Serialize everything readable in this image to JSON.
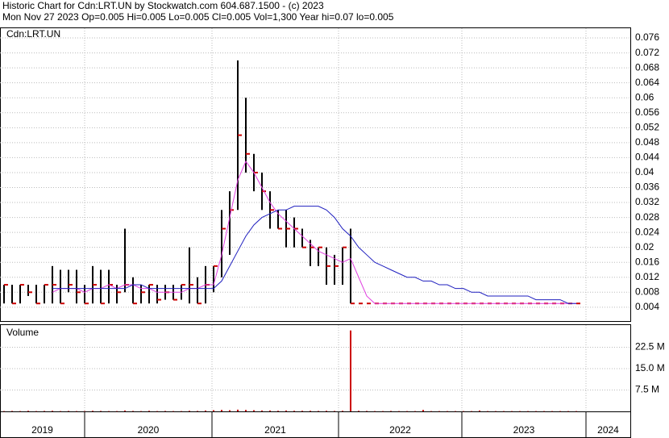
{
  "header": {
    "title": "Historic Chart for Cdn:LRT.UN by Stockwatch.com 604.687.1500 - (c) 2023",
    "quote": "Mon Nov 27 2023  Op=0.005  Hi=0.005  Lo=0.005  Cl=0.005  Vol=1,300  Year hi=0.07  lo=0.005"
  },
  "chart_data": [
    {
      "type": "hlc",
      "title": "Cdn:LRT.UN",
      "xlim": [
        -0.5,
        77.7
      ],
      "xticks": [
        {
          "value": -0.5,
          "label": "2019"
        },
        {
          "value": 10,
          "label": "2020"
        },
        {
          "value": 25.8,
          "label": "2021"
        },
        {
          "value": 41.5,
          "label": "2022"
        },
        {
          "value": 56.8,
          "label": "2023"
        },
        {
          "value": 72.2,
          "label": "2024"
        }
      ],
      "ylim": [
        0.0003,
        0.0786
      ],
      "yticks": [
        0.076,
        0.072,
        0.068,
        0.064,
        0.06,
        0.056,
        0.052,
        0.048,
        0.044,
        0.04,
        0.036,
        0.032,
        0.028,
        0.024,
        0.02,
        0.016,
        0.012,
        0.008,
        0.004
      ],
      "grid": true,
      "high": [
        0.01,
        0.01,
        0.01,
        0.01,
        0.01,
        0.01,
        0.015,
        0.014,
        0.014,
        0.014,
        0.01,
        0.015,
        0.014,
        0.014,
        0.01,
        0.025,
        0.012,
        0.01,
        0.01,
        0.01,
        0.01,
        0.01,
        0.01,
        0.02,
        0.012,
        0.015,
        0.015,
        0.03,
        0.035,
        0.07,
        0.06,
        0.045,
        0.04,
        0.035,
        0.03,
        0.03,
        0.028,
        0.025,
        0.022,
        0.02,
        0.02,
        0.018,
        0.02,
        0.025,
        0.005,
        0.005,
        0.005,
        0.005,
        0.005,
        0.005,
        0.005,
        0.005,
        0.005,
        0.005,
        0.005,
        0.005,
        0.005,
        0.005,
        0.005,
        0.005,
        0.005,
        0.005,
        0.005,
        0.005,
        0.005,
        0.005,
        0.005,
        0.005,
        0.005,
        0.005,
        0.005,
        0.005
      ],
      "low": [
        0.005,
        0.005,
        0.005,
        0.007,
        0.005,
        0.005,
        0.005,
        0.005,
        0.008,
        0.005,
        0.005,
        0.005,
        0.005,
        0.005,
        0.005,
        0.008,
        0.005,
        0.005,
        0.005,
        0.005,
        0.006,
        0.006,
        0.006,
        0.005,
        0.005,
        0.005,
        0.008,
        0.012,
        0.018,
        0.03,
        0.04,
        0.035,
        0.03,
        0.025,
        0.025,
        0.02,
        0.02,
        0.02,
        0.015,
        0.015,
        0.01,
        0.01,
        0.01,
        0.005,
        0.005,
        0.005,
        0.005,
        0.005,
        0.005,
        0.005,
        0.005,
        0.005,
        0.005,
        0.005,
        0.005,
        0.005,
        0.005,
        0.005,
        0.005,
        0.005,
        0.005,
        0.005,
        0.005,
        0.005,
        0.005,
        0.005,
        0.005,
        0.005,
        0.005,
        0.005,
        0.005,
        0.005
      ],
      "close": [
        0.01,
        0.005,
        0.01,
        0.008,
        0.005,
        0.01,
        0.01,
        0.005,
        0.01,
        0.008,
        0.005,
        0.01,
        0.005,
        0.01,
        0.008,
        0.01,
        0.005,
        0.008,
        0.01,
        0.006,
        0.008,
        0.006,
        0.01,
        0.01,
        0.005,
        0.01,
        0.015,
        0.025,
        0.03,
        0.05,
        0.045,
        0.04,
        0.035,
        0.03,
        0.025,
        0.025,
        0.025,
        0.02,
        0.02,
        0.02,
        0.015,
        0.015,
        0.02,
        0.005,
        0.005,
        0.005,
        0.005,
        0.005,
        0.005,
        0.005,
        0.005,
        0.005,
        0.005,
        0.005,
        0.005,
        0.005,
        0.005,
        0.005,
        0.005,
        0.005,
        0.005,
        0.005,
        0.005,
        0.005,
        0.005,
        0.005,
        0.005,
        0.005,
        0.005,
        0.005,
        0.005,
        0.005
      ],
      "bar_color": "#000000",
      "close_color": "#cc0000",
      "series": [
        {
          "color": "#e040e0",
          "values": [
            null,
            null,
            null,
            null,
            null,
            null,
            0.008,
            0.009,
            0.009,
            0.009,
            0.008,
            0.009,
            0.009,
            0.01,
            0.009,
            0.01,
            0.01,
            0.009,
            0.009,
            0.008,
            0.008,
            0.008,
            0.008,
            0.009,
            0.009,
            0.01,
            0.01,
            0.018,
            0.028,
            0.038,
            0.043,
            0.04,
            0.036,
            0.032,
            0.029,
            0.027,
            0.025,
            0.023,
            0.021,
            0.019,
            0.018,
            0.017,
            0.016,
            0.017,
            0.012,
            0.007,
            0.005,
            0.005,
            0.005,
            0.005,
            0.005,
            0.005,
            0.005,
            0.005,
            0.005,
            0.005,
            0.005,
            0.005,
            0.005,
            0.005,
            0.005,
            0.005,
            0.005,
            0.005,
            0.005,
            0.005,
            0.005,
            0.005,
            0.005,
            0.005,
            0.005,
            0.005
          ]
        },
        {
          "color": "#1f1fbf",
          "values": [
            null,
            null,
            null,
            null,
            null,
            null,
            0.009,
            0.009,
            0.009,
            0.009,
            0.009,
            0.009,
            0.009,
            0.009,
            0.009,
            0.009,
            0.01,
            0.01,
            0.009,
            0.009,
            0.009,
            0.009,
            0.009,
            0.009,
            0.009,
            0.009,
            0.009,
            0.011,
            0.015,
            0.019,
            0.023,
            0.026,
            0.028,
            0.029,
            0.03,
            0.03,
            0.031,
            0.031,
            0.031,
            0.031,
            0.03,
            0.028,
            0.025,
            0.023,
            0.02,
            0.018,
            0.016,
            0.015,
            0.014,
            0.013,
            0.012,
            0.012,
            0.011,
            0.011,
            0.01,
            0.01,
            0.009,
            0.009,
            0.008,
            0.008,
            0.007,
            0.007,
            0.007,
            0.007,
            0.007,
            0.007,
            0.006,
            0.006,
            0.006,
            0.006,
            0.005,
            0.005
          ]
        }
      ]
    },
    {
      "type": "bar",
      "title": "Volume",
      "color": "#cc0000",
      "ylim": [
        0,
        30300000
      ],
      "yticks": [
        {
          "value": 22500000,
          "label": "22.5 M"
        },
        {
          "value": 15000000,
          "label": "15.0 M"
        },
        {
          "value": 7500000,
          "label": "7.5 M"
        }
      ],
      "values": [
        100000,
        150000,
        100000,
        200000,
        100000,
        150000,
        200000,
        100000,
        150000,
        100000,
        100000,
        200000,
        150000,
        100000,
        100000,
        300000,
        150000,
        100000,
        200000,
        100000,
        150000,
        100000,
        100000,
        200000,
        150000,
        300000,
        400000,
        500000,
        400000,
        600000,
        500000,
        400000,
        300000,
        300000,
        200000,
        300000,
        200000,
        200000,
        200000,
        150000,
        200000,
        150000,
        200000,
        28400000,
        200000,
        150000,
        100000,
        100000,
        150000,
        100000,
        100000,
        100000,
        500000,
        100000,
        100000,
        100000,
        100000,
        100000,
        100000,
        300000,
        100000,
        100000,
        100000,
        100000,
        100000,
        100000,
        100000,
        100000,
        100000,
        100000,
        100000,
        100000
      ]
    }
  ]
}
